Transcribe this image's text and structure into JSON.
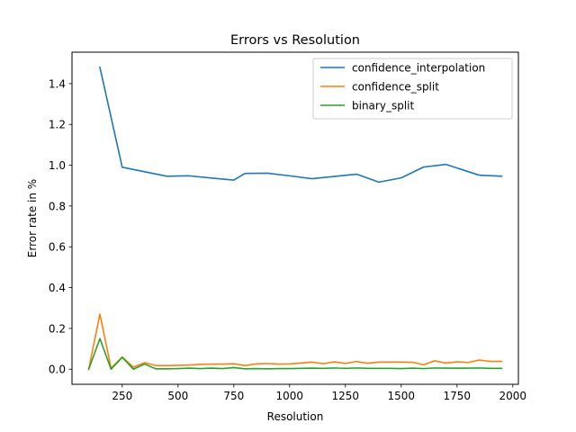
{
  "chart_data": {
    "type": "line",
    "title": "Errors vs Resolution",
    "xlabel": "Resolution",
    "ylabel": "Error rate in %",
    "xlim": [
      25,
      2025
    ],
    "ylim": [
      -0.074,
      1.554
    ],
    "xticks": [
      250,
      500,
      750,
      1000,
      1250,
      1500,
      1750,
      2000
    ],
    "yticks": [
      0.0,
      0.2,
      0.4,
      0.6,
      0.8,
      1.0,
      1.2,
      1.4
    ],
    "grid": false,
    "legend": "top-right",
    "x": [
      100,
      150,
      200,
      250,
      300,
      350,
      400,
      450,
      500,
      550,
      600,
      650,
      700,
      750,
      800,
      850,
      900,
      950,
      1000,
      1050,
      1100,
      1150,
      1200,
      1250,
      1300,
      1350,
      1400,
      1450,
      1500,
      1550,
      1600,
      1650,
      1700,
      1750,
      1800,
      1850,
      1900,
      1950
    ],
    "series": [
      {
        "name": "confidence_interpolation",
        "color": "#1f77b4",
        "x": [
          150,
          250,
          350,
          450,
          550,
          650,
          750,
          800,
          900,
          1000,
          1100,
          1200,
          1300,
          1400,
          1500,
          1600,
          1700,
          1850,
          1950
        ],
        "values": [
          1.48,
          0.99,
          0.968,
          0.946,
          0.948,
          0.937,
          0.927,
          0.96,
          0.961,
          0.948,
          0.934,
          0.945,
          0.956,
          0.917,
          0.938,
          0.991,
          1.004,
          0.951,
          0.946
        ]
      },
      {
        "name": "confidence_split",
        "color": "#ff7f0e",
        "x": [
          100,
          150,
          200,
          250,
          300,
          350,
          400,
          450,
          500,
          550,
          600,
          650,
          700,
          750,
          800,
          850,
          900,
          950,
          1000,
          1050,
          1100,
          1150,
          1200,
          1250,
          1300,
          1350,
          1400,
          1450,
          1500,
          1550,
          1600,
          1650,
          1700,
          1750,
          1800,
          1850,
          1900,
          1950
        ],
        "values": [
          0.0,
          0.27,
          0.005,
          0.06,
          0.01,
          0.032,
          0.018,
          0.018,
          0.019,
          0.02,
          0.024,
          0.025,
          0.025,
          0.027,
          0.018,
          0.026,
          0.028,
          0.025,
          0.026,
          0.03,
          0.035,
          0.027,
          0.036,
          0.028,
          0.038,
          0.029,
          0.035,
          0.035,
          0.035,
          0.034,
          0.022,
          0.041,
          0.03,
          0.036,
          0.033,
          0.045,
          0.038,
          0.038
        ]
      },
      {
        "name": "binary_split",
        "color": "#2ca02c",
        "x": [
          100,
          150,
          200,
          250,
          300,
          350,
          400,
          450,
          500,
          550,
          600,
          650,
          700,
          750,
          800,
          850,
          900,
          950,
          1000,
          1050,
          1100,
          1150,
          1200,
          1250,
          1300,
          1350,
          1400,
          1450,
          1500,
          1550,
          1600,
          1650,
          1700,
          1750,
          1800,
          1850,
          1900,
          1950
        ],
        "values": [
          0.0,
          0.15,
          0.0,
          0.058,
          0.0,
          0.025,
          0.002,
          0.002,
          0.003,
          0.005,
          0.003,
          0.005,
          0.003,
          0.008,
          0.002,
          0.003,
          0.002,
          0.003,
          0.003,
          0.004,
          0.005,
          0.004,
          0.006,
          0.004,
          0.006,
          0.004,
          0.004,
          0.004,
          0.003,
          0.005,
          0.003,
          0.006,
          0.005,
          0.005,
          0.005,
          0.006,
          0.004,
          0.004
        ]
      }
    ]
  }
}
